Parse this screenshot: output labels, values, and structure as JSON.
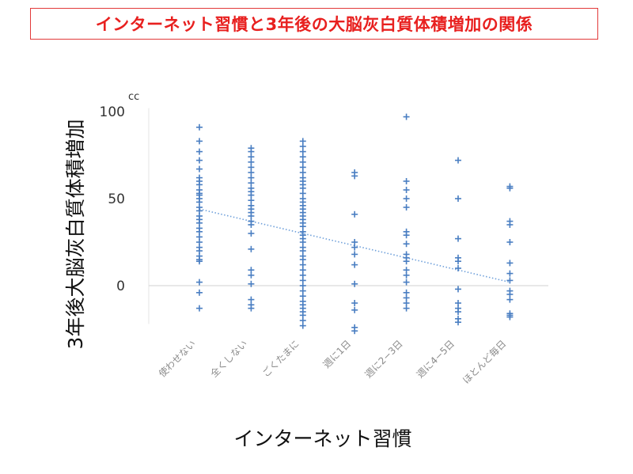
{
  "chart_data": {
    "type": "scatter",
    "title": "インターネット習慣と3年後の大脳灰白質体積増加の関係",
    "xlabel": "インターネット習慣",
    "ylabel": "3年後大脳灰白質体積増加",
    "y_unit": "cc",
    "ylim": [
      -25,
      105
    ],
    "yticks": [
      0,
      50,
      100
    ],
    "grid": false,
    "categories": [
      "使わせない",
      "全くしない",
      "ごくたまに",
      "週に1日",
      "週に2−3日",
      "週に4−5日",
      "ほとんど毎日"
    ],
    "series": [
      {
        "values": [
          [
            91,
            83,
            77,
            72,
            67,
            62,
            60,
            58,
            55,
            53,
            52,
            50,
            48,
            45,
            43,
            40,
            38,
            36,
            33,
            31,
            28,
            25,
            22,
            20,
            17,
            15,
            14,
            2,
            -4,
            -13
          ],
          [
            79,
            77,
            74,
            71,
            68,
            65,
            62,
            59,
            56,
            54,
            52,
            49,
            46,
            44,
            42,
            40,
            37,
            35,
            30,
            21,
            9,
            6,
            1,
            -8,
            -11,
            -13
          ],
          [
            83,
            80,
            77,
            74,
            71,
            68,
            65,
            62,
            60,
            58,
            56,
            53,
            50,
            48,
            46,
            44,
            42,
            40,
            38,
            36,
            34,
            31,
            29,
            27,
            25,
            22,
            20,
            17,
            15,
            12,
            9,
            6,
            3,
            0,
            -3,
            -6,
            -9,
            -11,
            -13,
            -15,
            -17,
            -20,
            -23
          ],
          [
            65,
            63,
            41,
            25,
            22,
            18,
            12,
            1,
            -10,
            -14,
            -24,
            -26
          ],
          [
            97,
            60,
            55,
            50,
            45,
            31,
            29,
            24,
            18,
            16,
            14,
            9,
            6,
            2,
            -4,
            -7,
            -10,
            -13
          ],
          [
            72,
            50,
            27,
            16,
            14,
            10,
            -2,
            -10,
            -13,
            -15,
            -19,
            -21
          ],
          [
            57,
            56,
            37,
            35,
            25,
            13,
            7,
            3,
            -3,
            -5,
            -8,
            -16,
            -17,
            -18
          ]
        ]
      }
    ],
    "trendline": {
      "style": "dotted",
      "y_start": 44,
      "y_end": 2
    },
    "colors": {
      "points": "#4a7ec2",
      "trend": "#6fa0da",
      "baseline": "#d9d9d9"
    }
  }
}
